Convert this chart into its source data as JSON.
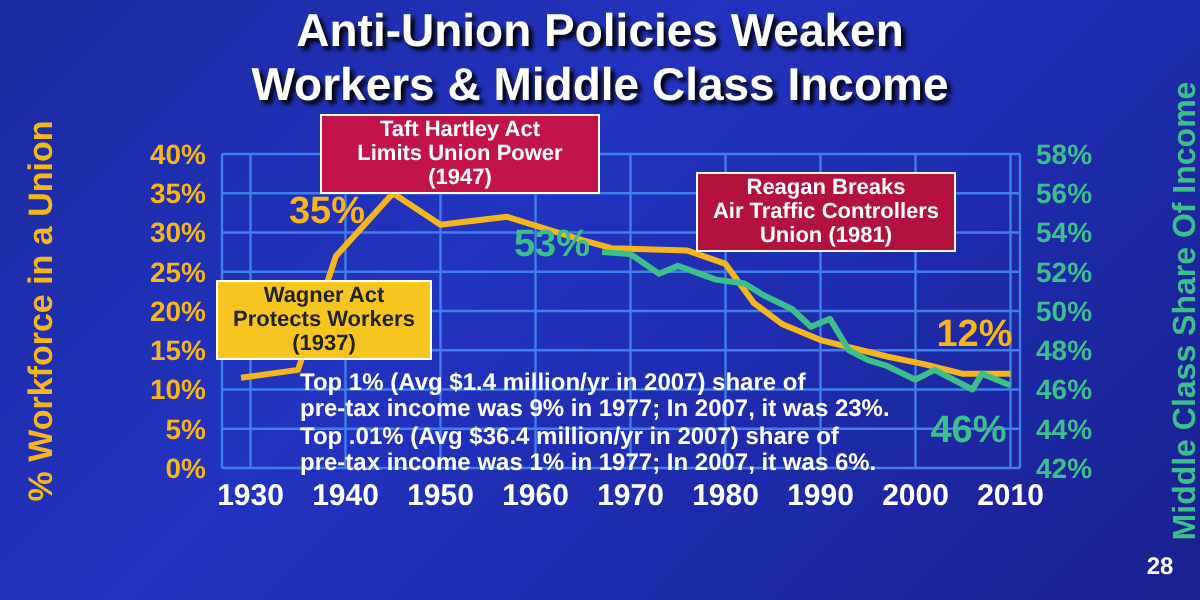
{
  "chart_data": {
    "type": "line",
    "title": "Anti-Union Policies Weaken\nWorkers & Middle Class Income",
    "ylabel": "% Workforce in a Union",
    "y2label": "Middle Class Share Of Income",
    "xlim": [
      1927,
      2011
    ],
    "xticks": [
      1930,
      1940,
      1950,
      1960,
      1970,
      1980,
      1990,
      2000,
      2010
    ],
    "ylim": [
      0,
      40
    ],
    "yticks": [
      {
        "value": 0,
        "label": "0%"
      },
      {
        "value": 5,
        "label": "5%"
      },
      {
        "value": 10,
        "label": "10%"
      },
      {
        "value": 15,
        "label": "15%"
      },
      {
        "value": 20,
        "label": "20%"
      },
      {
        "value": 25,
        "label": "25%"
      },
      {
        "value": 30,
        "label": "30%"
      },
      {
        "value": 35,
        "label": "35%"
      },
      {
        "value": 40,
        "label": "40%"
      }
    ],
    "y2lim": [
      42,
      58
    ],
    "y2ticks": [
      {
        "value": 42,
        "label": "42%"
      },
      {
        "value": 44,
        "label": "44%"
      },
      {
        "value": 46,
        "label": "46%"
      },
      {
        "value": 48,
        "label": "48%"
      },
      {
        "value": 50,
        "label": "50%"
      },
      {
        "value": 52,
        "label": "52%"
      },
      {
        "value": 54,
        "label": "54%"
      },
      {
        "value": 56,
        "label": "56%"
      },
      {
        "value": 58,
        "label": "58%"
      }
    ],
    "grid": true,
    "series": [
      {
        "color": "#f7b51c",
        "x": [
          1929,
          1935,
          1939,
          1945,
          1950,
          1957,
          1965,
          1968,
          1976,
          1980,
          1983,
          1986,
          1990,
          1997,
          2001,
          2005,
          2010
        ],
        "values": [
          11.5,
          12.5,
          27,
          35,
          31,
          32,
          29,
          28,
          27.7,
          26,
          21,
          18.3,
          16.3,
          14.2,
          13.2,
          12,
          12
        ],
        "value_labels": [
          null,
          null,
          null,
          "35%",
          null,
          null,
          null,
          null,
          null,
          null,
          null,
          null,
          null,
          null,
          null,
          null,
          "12%"
        ]
      },
      {
        "color": "#3cc08a",
        "axis": "y2",
        "x": [
          1967,
          1970,
          1973,
          1975,
          1979,
          1982,
          1984,
          1987,
          1989,
          1991,
          1993,
          1995,
          1997,
          2000,
          2002,
          2006,
          2007,
          2010
        ],
        "values": [
          53,
          52.9,
          51.9,
          52.3,
          51.6,
          51.4,
          50.8,
          50.1,
          49.2,
          49.6,
          48,
          47.5,
          47.2,
          46.5,
          47,
          46,
          46.8,
          46.2
        ],
        "value_labels": [
          "53%",
          null,
          null,
          null,
          null,
          null,
          null,
          null,
          null,
          null,
          null,
          null,
          null,
          null,
          null,
          "46%",
          null,
          null
        ]
      }
    ],
    "annotations": [
      "Taft Hartley Act\nLimits Union Power\n(1947)",
      "Wagner Act\nProtects Workers\n(1937)",
      "Reagan Breaks\nAir Traffic Controllers\nUnion (1981)",
      "Top 1% (Avg $1.4 million/yr in 2007) share of\npre-tax income was 9% in 1977; In 2007, it was 23%.",
      "Top .01% (Avg $36.4 million/yr in 2007) share of\npre-tax income was 1% in 1977; In 2007, it was 6%.",
      "28"
    ]
  }
}
